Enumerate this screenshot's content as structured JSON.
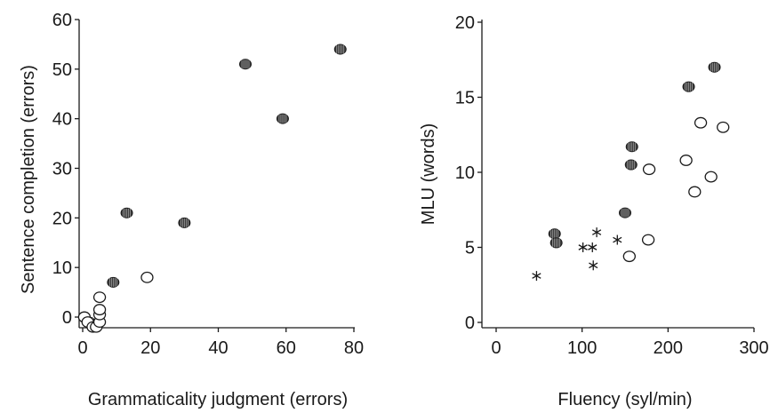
{
  "chart_data": [
    {
      "type": "scatter",
      "title": "",
      "xlabel": "Grammaticality judgment (errors)",
      "ylabel": "Sentence completion (errors)",
      "xlim": [
        -2,
        80
      ],
      "ylim": [
        -2,
        60
      ],
      "xticks": [
        "0",
        "20",
        "40",
        "60",
        "80"
      ],
      "yticks": [
        "0",
        "10",
        "20",
        "30",
        "40",
        "50",
        "60"
      ],
      "grid": false,
      "legend": "none",
      "series": [
        {
          "marker": "filled-circle",
          "color": "#3a3a3a",
          "points": [
            [
              2,
              -1
            ],
            [
              3,
              -2
            ],
            [
              4,
              -2
            ],
            [
              9,
              7
            ],
            [
              13,
              21
            ],
            [
              30,
              19
            ],
            [
              48,
              51
            ],
            [
              59,
              40
            ],
            [
              76,
              54
            ]
          ]
        },
        {
          "marker": "open-circle",
          "color": "#1a1a1a",
          "points": [
            [
              0.5,
              0
            ],
            [
              1.5,
              -1
            ],
            [
              3,
              -2
            ],
            [
              4,
              -2
            ],
            [
              5,
              -1
            ],
            [
              5,
              0.5
            ],
            [
              5,
              1.5
            ],
            [
              5,
              4
            ],
            [
              19,
              8
            ]
          ]
        }
      ]
    },
    {
      "type": "scatter",
      "title": "",
      "xlabel": "Fluency (syl/min)",
      "ylabel": "MLU (words)",
      "xlim": [
        0,
        300
      ],
      "ylim": [
        0,
        20
      ],
      "xticks": [
        "0",
        "100",
        "200",
        "300"
      ],
      "yticks": [
        "0",
        "5",
        "10",
        "15",
        "20"
      ],
      "grid": false,
      "legend": "none",
      "series": [
        {
          "marker": "filled-circle",
          "color": "#3a3a3a",
          "points": [
            [
              68,
              5.9
            ],
            [
              70,
              5.3
            ],
            [
              150,
              7.3
            ],
            [
              157,
              10.5
            ],
            [
              158,
              11.7
            ],
            [
              224,
              15.7
            ],
            [
              254,
              17
            ]
          ]
        },
        {
          "marker": "open-circle",
          "color": "#1a1a1a",
          "points": [
            [
              155,
              4.4
            ],
            [
              177,
              5.5
            ],
            [
              178,
              10.2
            ],
            [
              221,
              10.8
            ],
            [
              231,
              8.7
            ],
            [
              238,
              13.3
            ],
            [
              250,
              9.7
            ],
            [
              264,
              13
            ]
          ]
        },
        {
          "marker": "asterisk",
          "color": "#1a1a1a",
          "points": [
            [
              47,
              3.1
            ],
            [
              101,
              5
            ],
            [
              112,
              5
            ],
            [
              113,
              3.8
            ],
            [
              117,
              6
            ],
            [
              141,
              5.5
            ]
          ]
        }
      ]
    }
  ]
}
